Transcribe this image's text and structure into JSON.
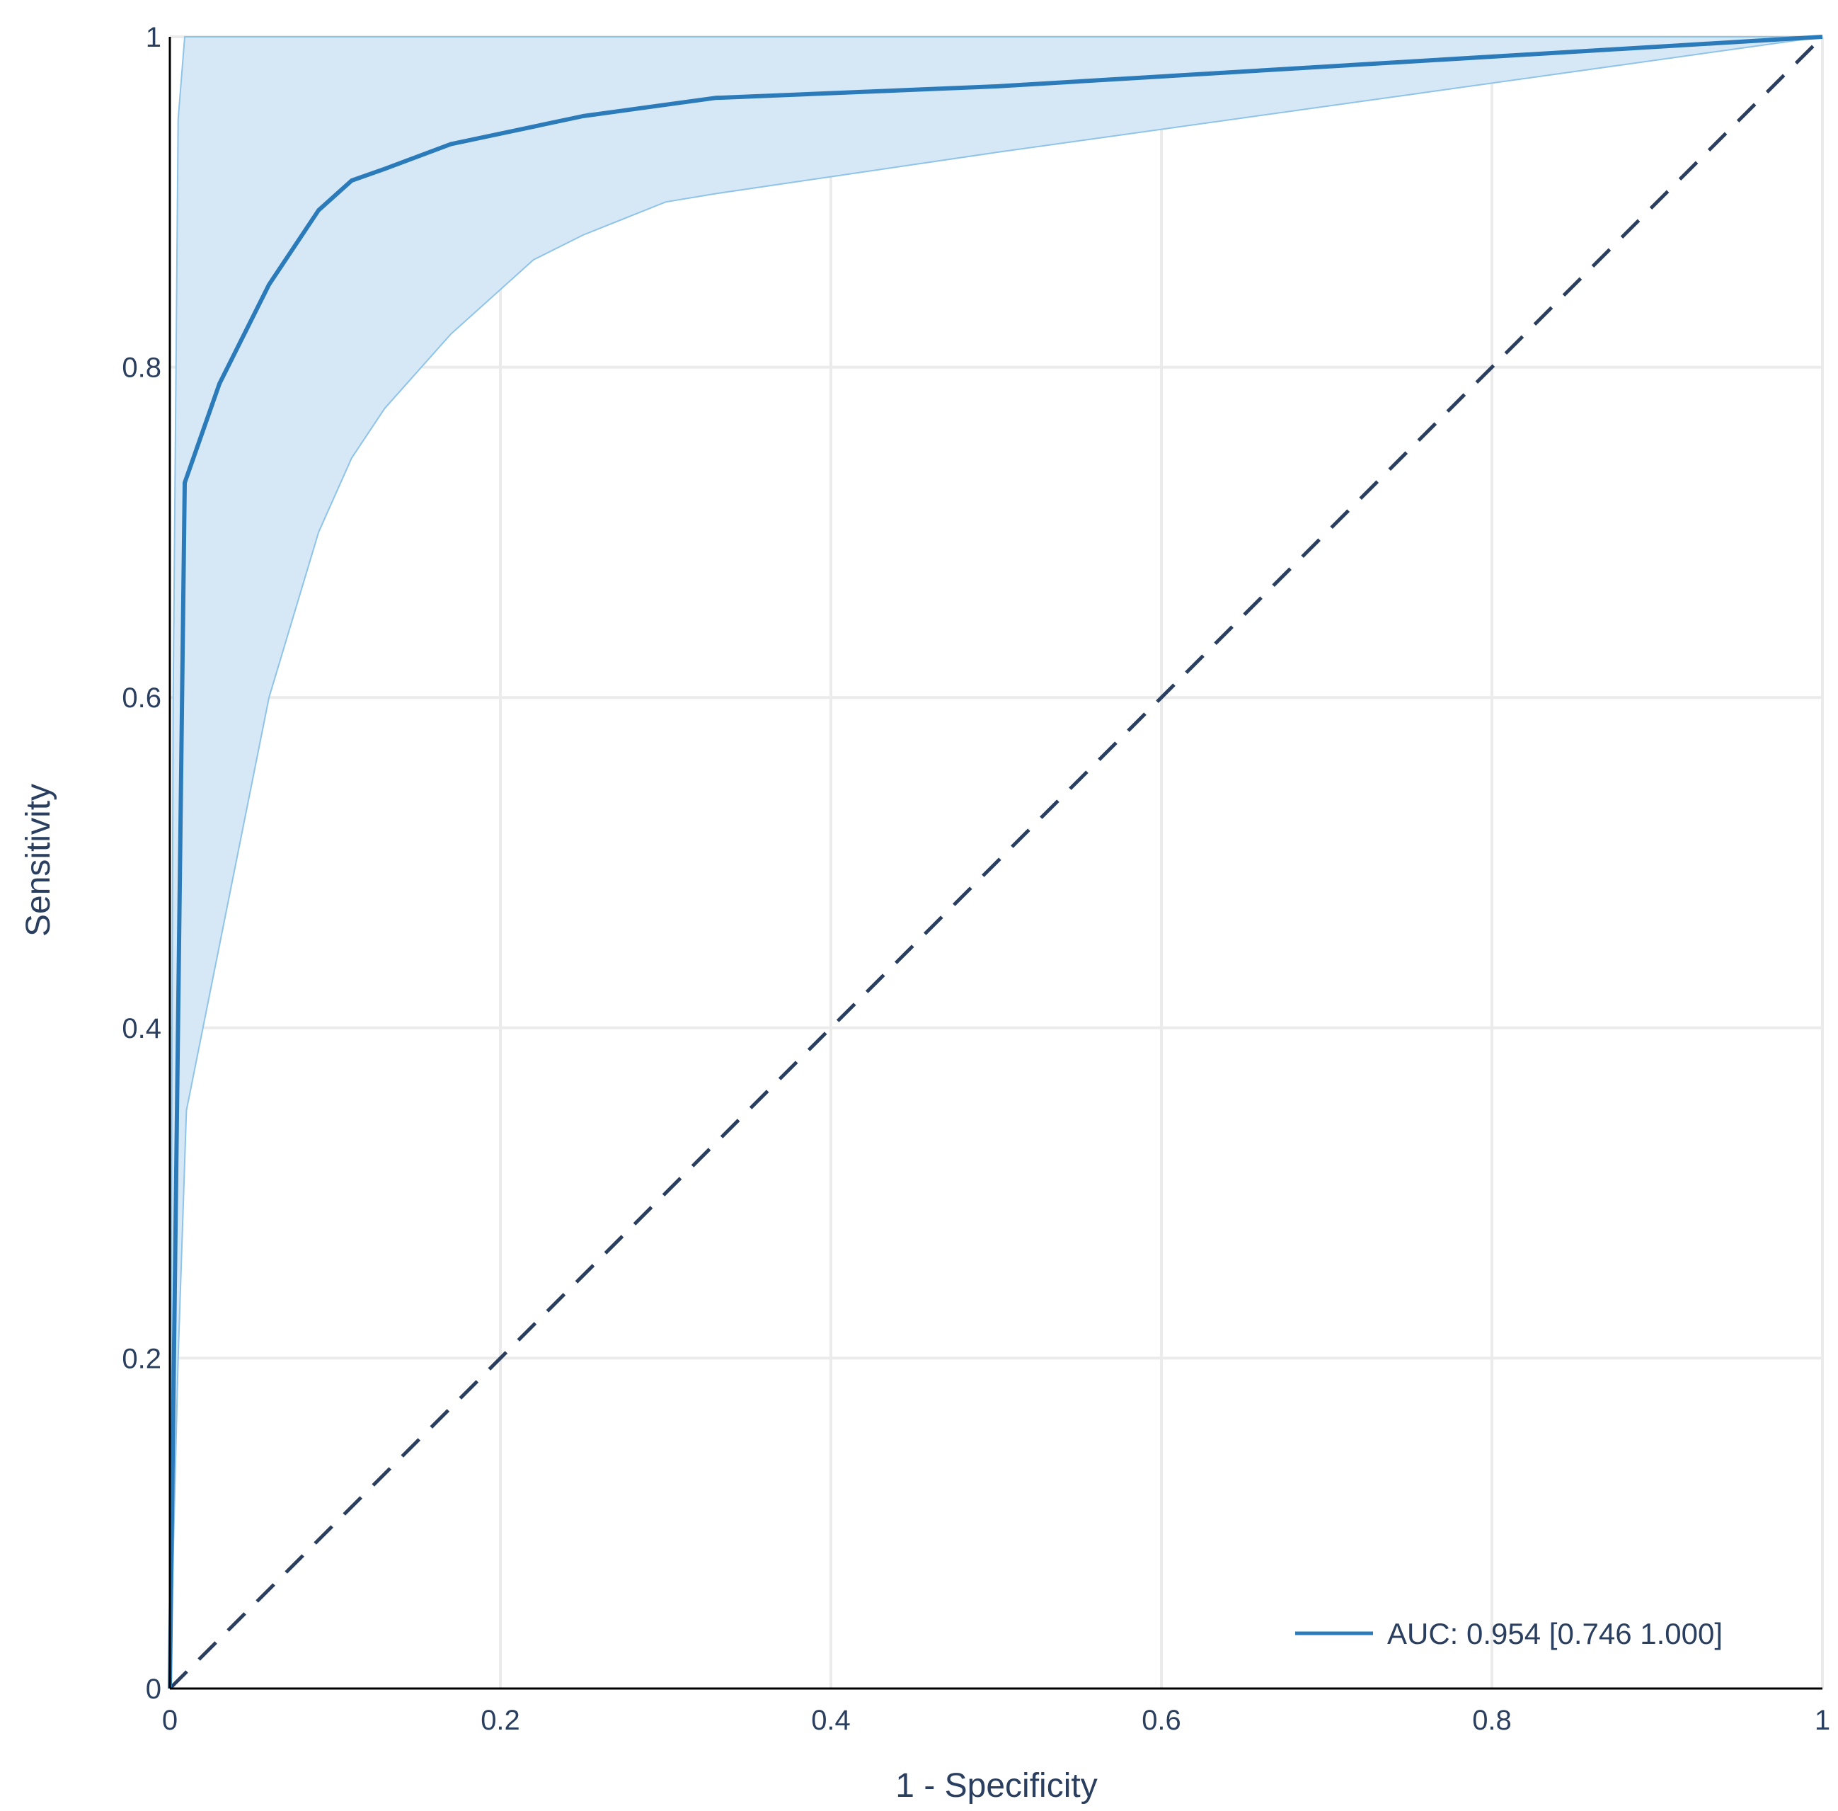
{
  "chart_data": {
    "type": "line",
    "title": "",
    "xlabel": "1 - Specificity",
    "ylabel": "Sensitivity",
    "xlim": [
      0,
      1
    ],
    "ylim": [
      0,
      1
    ],
    "x_ticks": [
      0,
      0.2,
      0.4,
      0.6,
      0.8,
      1
    ],
    "x_tick_labels": [
      "0",
      "0.2",
      "0.4",
      "0.6",
      "0.8",
      "1"
    ],
    "y_ticks": [
      0,
      0.2,
      0.4,
      0.6,
      0.8,
      1
    ],
    "y_tick_labels": [
      "0",
      "0.2",
      "0.4",
      "0.6",
      "0.8",
      "1"
    ],
    "grid": true,
    "legend_position": "bottom-right",
    "series": [
      {
        "name": "AUC: 0.954 [0.746 1.000]",
        "color": "#2b7bba",
        "x": [
          0,
          0.009,
          0.03,
          0.06,
          0.09,
          0.11,
          0.13,
          0.17,
          0.25,
          0.33,
          0.5,
          0.75,
          1
        ],
        "y": [
          0,
          0.73,
          0.79,
          0.85,
          0.895,
          0.913,
          0.92,
          0.935,
          0.952,
          0.963,
          0.97,
          0.985,
          1
        ]
      }
    ],
    "confidence_band": {
      "color": "#d6e8f6",
      "edge_color": "#8ec3ea",
      "upper": {
        "x": [
          0,
          0.002,
          0.005,
          0.009,
          1
        ],
        "y": [
          0,
          0.6,
          0.95,
          1,
          1
        ]
      },
      "lower": {
        "x": [
          0,
          0.005,
          0.01,
          0.03,
          0.06,
          0.09,
          0.11,
          0.13,
          0.17,
          0.22,
          0.25,
          0.3,
          0.33,
          0.5,
          0.75,
          1
        ],
        "y": [
          0,
          0.2,
          0.35,
          0.45,
          0.6,
          0.7,
          0.745,
          0.775,
          0.82,
          0.865,
          0.88,
          0.9,
          0.905,
          0.93,
          0.965,
          1
        ]
      }
    },
    "reference_line": {
      "x": [
        0,
        1
      ],
      "y": [
        0,
        1
      ],
      "style": "dashed",
      "color": "#2a3f5f"
    }
  }
}
